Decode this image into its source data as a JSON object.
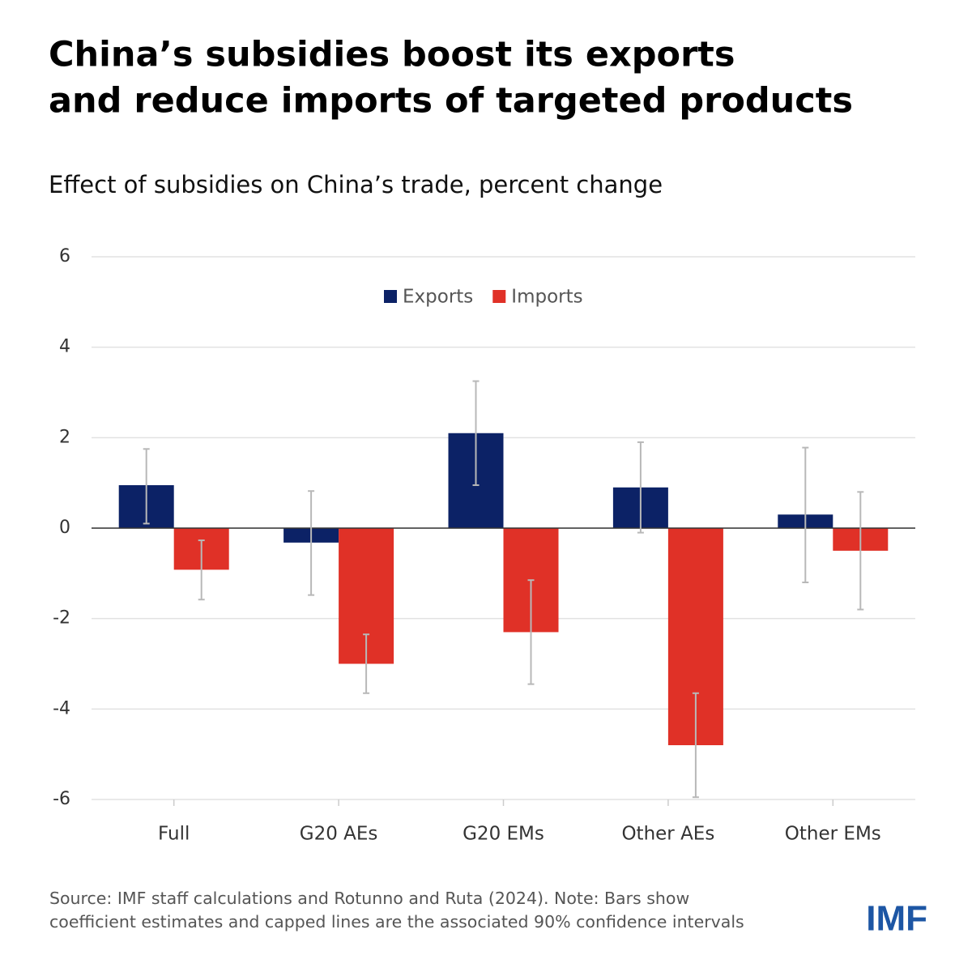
{
  "chart_data": {
    "type": "bar",
    "title": [
      "China’s subsidies boost its exports",
      "and reduce imports of targeted products"
    ],
    "subtitle": "Effect of subsidies on China’s trade, percent change",
    "categories": [
      "Full",
      "G20 AEs",
      "G20 EMs",
      "Other AEs",
      "Other EMs"
    ],
    "series": [
      {
        "name": "Exports",
        "color": "#0c2266",
        "values": [
          0.95,
          -0.32,
          2.1,
          0.9,
          0.3
        ],
        "ci": [
          [
            0.1,
            1.75
          ],
          [
            -1.48,
            0.82
          ],
          [
            0.95,
            3.25
          ],
          [
            -0.1,
            1.9
          ],
          [
            -1.2,
            1.78
          ]
        ]
      },
      {
        "name": "Imports",
        "color": "#e03127",
        "values": [
          -0.92,
          -3.0,
          -2.3,
          -4.8,
          -0.5
        ],
        "ci": [
          [
            -1.58,
            -0.27
          ],
          [
            -3.65,
            -2.35
          ],
          [
            -3.45,
            -1.15
          ],
          [
            -5.95,
            -3.65
          ],
          [
            -1.8,
            0.8
          ]
        ]
      }
    ],
    "ylim": [
      -6,
      6
    ],
    "yticks": [
      -6,
      -4,
      -2,
      0,
      2,
      4,
      6
    ],
    "grid": true,
    "legend": "top",
    "source": "Source: IMF staff calculations and Rotunno and Ruta (2024). Note: Bars show coefficient estimates and capped lines are the associated 90% confidence intervals",
    "logo": "IMF"
  }
}
